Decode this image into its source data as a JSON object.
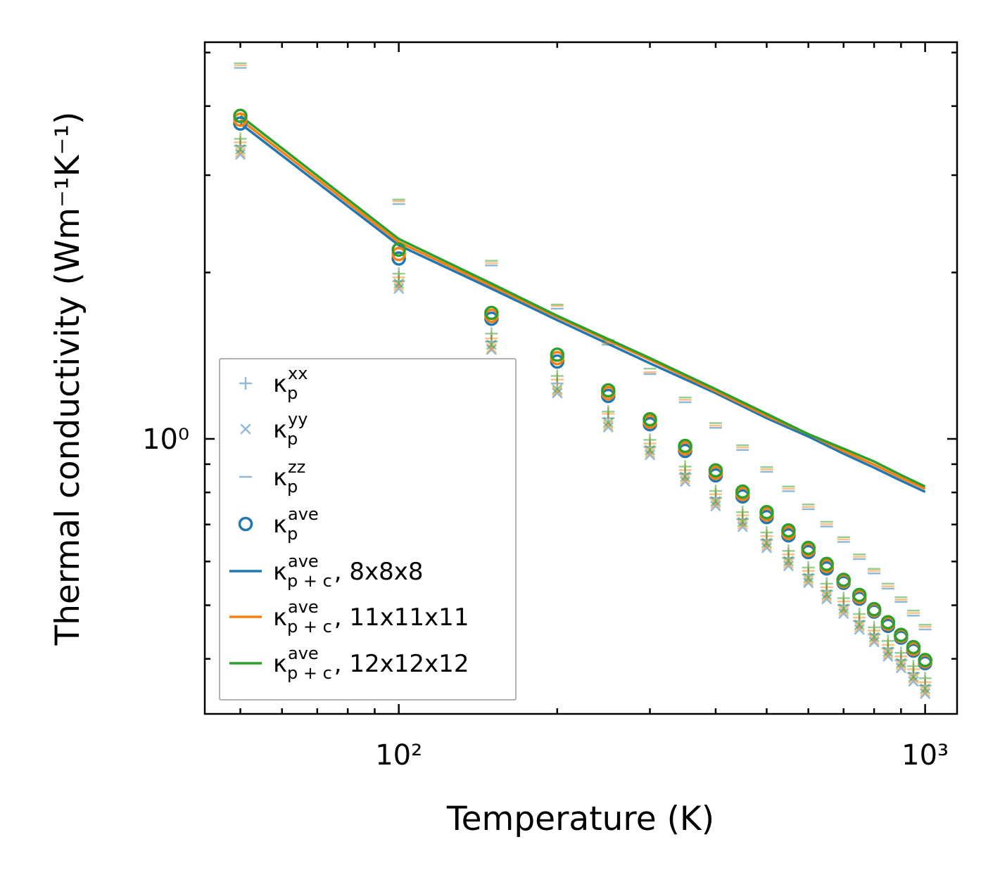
{
  "chart_data": {
    "type": "scatter",
    "xscale": "log",
    "yscale": "log",
    "xlabel": "Temperature (K)",
    "ylabel": "Thermal conductivity (Wm⁻¹K⁻¹)",
    "xlim": [
      42.8,
      1150
    ],
    "ylim": [
      0.318,
      5.22
    ],
    "x_major_ticks": [
      {
        "value": 100,
        "label": "10²"
      },
      {
        "value": 1000,
        "label": "10³"
      }
    ],
    "x_minor_ticks": [
      50,
      60,
      70,
      80,
      90,
      200,
      300,
      400,
      500,
      600,
      700,
      800,
      900
    ],
    "y_major_ticks": [
      {
        "value": 1,
        "label": "10⁰"
      }
    ],
    "y_minor_ticks": [
      0.4,
      0.5,
      0.6,
      0.7,
      0.8,
      0.9,
      2,
      3,
      4,
      5
    ],
    "grid": false,
    "legend_position": "lower-left",
    "x": [
      50,
      100,
      150,
      200,
      250,
      300,
      350,
      400,
      450,
      500,
      550,
      600,
      650,
      700,
      750,
      800,
      850,
      900,
      950,
      1000
    ],
    "series": [
      {
        "name": "8x8x8",
        "color": "#1f77b4",
        "ave": [
          3.72,
          2.12,
          1.65,
          1.38,
          1.196,
          1.063,
          0.951,
          0.859,
          0.787,
          0.722,
          0.669,
          0.624,
          0.583,
          0.549,
          0.514,
          0.487,
          0.459,
          0.437,
          0.414,
          0.393
        ],
        "xx": [
          3.39,
          1.93,
          1.5,
          1.26,
          1.09,
          0.967,
          0.865,
          0.782,
          0.716,
          0.657,
          0.609,
          0.568,
          0.531,
          0.5,
          0.468,
          0.443,
          0.418,
          0.398,
          0.377,
          0.358
        ],
        "yy": [
          3.27,
          1.87,
          1.45,
          1.21,
          1.05,
          0.935,
          0.837,
          0.756,
          0.693,
          0.635,
          0.589,
          0.549,
          0.513,
          0.483,
          0.452,
          0.429,
          0.404,
          0.385,
          0.364,
          0.346
        ],
        "zz": [
          4.69,
          2.66,
          2.06,
          1.72,
          1.48,
          1.31,
          1.165,
          1.047,
          0.955,
          0.872,
          0.804,
          0.746,
          0.694,
          0.651,
          0.606,
          0.571,
          0.536,
          0.507,
          0.479,
          0.452
        ],
        "line_x": [
          50,
          100,
          150,
          200,
          300,
          400,
          500,
          600,
          700,
          800,
          900,
          1000
        ],
        "line_y": [
          3.72,
          2.24,
          1.87,
          1.64,
          1.37,
          1.21,
          1.09,
          1.01,
          0.94,
          0.887,
          0.84,
          0.802
        ]
      },
      {
        "name": "11x11x11",
        "color": "#ff7f0e",
        "ave": [
          3.78,
          2.16,
          1.67,
          1.4,
          1.21,
          1.074,
          0.961,
          0.868,
          0.795,
          0.73,
          0.676,
          0.63,
          0.589,
          0.553,
          0.518,
          0.49,
          0.463,
          0.44,
          0.417,
          0.396
        ],
        "xx": [
          3.44,
          1.96,
          1.52,
          1.28,
          1.11,
          0.981,
          0.878,
          0.794,
          0.727,
          0.667,
          0.618,
          0.577,
          0.539,
          0.508,
          0.475,
          0.45,
          0.424,
          0.404,
          0.383,
          0.363
        ],
        "yy": [
          3.3,
          1.89,
          1.46,
          1.22,
          1.06,
          0.944,
          0.845,
          0.764,
          0.7,
          0.641,
          0.595,
          0.554,
          0.518,
          0.488,
          0.457,
          0.433,
          0.408,
          0.389,
          0.368,
          0.349
        ],
        "zz": [
          4.74,
          2.69,
          2.08,
          1.74,
          1.49,
          1.32,
          1.177,
          1.057,
          0.965,
          0.881,
          0.812,
          0.753,
          0.701,
          0.658,
          0.612,
          0.577,
          0.541,
          0.512,
          0.484,
          0.457
        ],
        "line_x": [
          50,
          100,
          150,
          200,
          300,
          400,
          500,
          600,
          700,
          800,
          900,
          1000
        ],
        "line_y": [
          3.78,
          2.27,
          1.89,
          1.66,
          1.39,
          1.22,
          1.1,
          1.02,
          0.95,
          0.898,
          0.85,
          0.812
        ]
      },
      {
        "name": "12x12x12",
        "color": "#2ca02c",
        "ave": [
          3.84,
          2.2,
          1.69,
          1.42,
          1.224,
          1.085,
          0.971,
          0.877,
          0.803,
          0.737,
          0.683,
          0.635,
          0.594,
          0.556,
          0.522,
          0.492,
          0.466,
          0.442,
          0.42,
          0.398
        ],
        "xx": [
          3.49,
          1.99,
          1.55,
          1.3,
          1.12,
          0.996,
          0.891,
          0.805,
          0.737,
          0.677,
          0.627,
          0.585,
          0.547,
          0.515,
          0.482,
          0.456,
          0.431,
          0.41,
          0.388,
          0.369
        ],
        "yy": [
          3.34,
          1.91,
          1.48,
          1.23,
          1.07,
          0.954,
          0.854,
          0.771,
          0.707,
          0.648,
          0.601,
          0.56,
          0.523,
          0.493,
          0.461,
          0.438,
          0.412,
          0.393,
          0.371,
          0.353
        ],
        "zz": [
          4.78,
          2.71,
          2.1,
          1.75,
          1.51,
          1.34,
          1.188,
          1.068,
          0.974,
          0.889,
          0.82,
          0.761,
          0.708,
          0.664,
          0.618,
          0.582,
          0.547,
          0.517,
          0.489,
          0.461
        ],
        "line_x": [
          50,
          100,
          150,
          200,
          300,
          400,
          500,
          600,
          700,
          800,
          900,
          1000
        ],
        "line_y": [
          3.84,
          2.3,
          1.91,
          1.67,
          1.4,
          1.23,
          1.11,
          1.02,
          0.96,
          0.91,
          0.86,
          0.82
        ]
      }
    ],
    "legend": [
      {
        "marker": "plus",
        "color": "#1f77b4",
        "base": "κ",
        "sub": "p",
        "sup": "xx",
        "suffix": ""
      },
      {
        "marker": "x",
        "color": "#1f77b4",
        "base": "κ",
        "sub": "p",
        "sup": "yy",
        "suffix": ""
      },
      {
        "marker": "dash",
        "color": "#1f77b4",
        "base": "κ",
        "sub": "p",
        "sup": "zz",
        "suffix": ""
      },
      {
        "marker": "circle",
        "color": "#1f77b4",
        "base": "κ",
        "sub": "p",
        "sup": "ave",
        "suffix": ""
      },
      {
        "marker": "line",
        "color": "#1f77b4",
        "base": "κ",
        "sub": "p + c",
        "sup": "ave",
        "suffix": ", 8x8x8"
      },
      {
        "marker": "line",
        "color": "#ff7f0e",
        "base": "κ",
        "sub": "p + c",
        "sup": "ave",
        "suffix": ", 11x11x11"
      },
      {
        "marker": "line",
        "color": "#2ca02c",
        "base": "κ",
        "sub": "p + c",
        "sup": "ave",
        "suffix": ", 12x12x12"
      }
    ]
  }
}
